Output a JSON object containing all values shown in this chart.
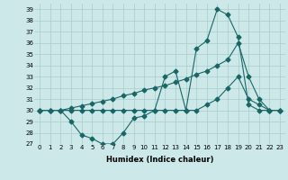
{
  "xlabel": "Humidex (Indice chaleur)",
  "ylabel": "",
  "bg_color": "#cce8e8",
  "grid_color": "#aacccc",
  "line_color": "#1a6666",
  "xlim": [
    -0.5,
    23.5
  ],
  "ylim": [
    27,
    39.5
  ],
  "yticks": [
    27,
    28,
    29,
    30,
    31,
    32,
    33,
    34,
    35,
    36,
    37,
    38,
    39
  ],
  "xticks": [
    0,
    1,
    2,
    3,
    4,
    5,
    6,
    7,
    8,
    9,
    10,
    11,
    12,
    13,
    14,
    15,
    16,
    17,
    18,
    19,
    20,
    21,
    22,
    23
  ],
  "series": [
    {
      "x": [
        0,
        1,
        2,
        3,
        4,
        5,
        6,
        7,
        8,
        9,
        10,
        11,
        12,
        13,
        14,
        15,
        16,
        17,
        18,
        19,
        20,
        21,
        22,
        23
      ],
      "y": [
        30.0,
        30.0,
        30.0,
        29.0,
        27.8,
        27.5,
        27.0,
        27.0,
        28.0,
        29.3,
        29.5,
        30.0,
        33.0,
        33.5,
        30.0,
        35.5,
        36.2,
        39.0,
        38.5,
        36.5,
        30.5,
        30.0,
        30.0,
        30.0
      ],
      "marker": "D",
      "linestyle": "-"
    },
    {
      "x": [
        0,
        23
      ],
      "y": [
        30.0,
        30.0
      ],
      "marker": "D",
      "linestyle": "-",
      "use_diagonal": true,
      "x_full": [
        0,
        1,
        2,
        3,
        4,
        5,
        6,
        7,
        8,
        9,
        10,
        11,
        12,
        13,
        14,
        15,
        16,
        17,
        18,
        19,
        20,
        21,
        22,
        23
      ],
      "y_full": [
        30.0,
        30.0,
        30.0,
        30.2,
        30.4,
        30.6,
        30.8,
        31.0,
        31.3,
        31.5,
        31.8,
        32.0,
        32.2,
        32.5,
        32.8,
        33.2,
        33.5,
        34.0,
        34.5,
        36.0,
        33.0,
        31.0,
        30.0,
        30.0
      ]
    },
    {
      "x": [
        0,
        1,
        2,
        3,
        4,
        5,
        6,
        7,
        8,
        9,
        10,
        11,
        12,
        13,
        14,
        15,
        16,
        17,
        18,
        19,
        20,
        21,
        22,
        23
      ],
      "y": [
        30.0,
        30.0,
        30.0,
        30.0,
        30.0,
        30.0,
        30.0,
        30.0,
        30.0,
        30.0,
        30.0,
        30.0,
        30.0,
        30.0,
        30.0,
        30.0,
        30.5,
        31.0,
        32.0,
        33.0,
        31.0,
        30.5,
        30.0,
        30.0
      ],
      "marker": "D",
      "linestyle": "-"
    }
  ]
}
